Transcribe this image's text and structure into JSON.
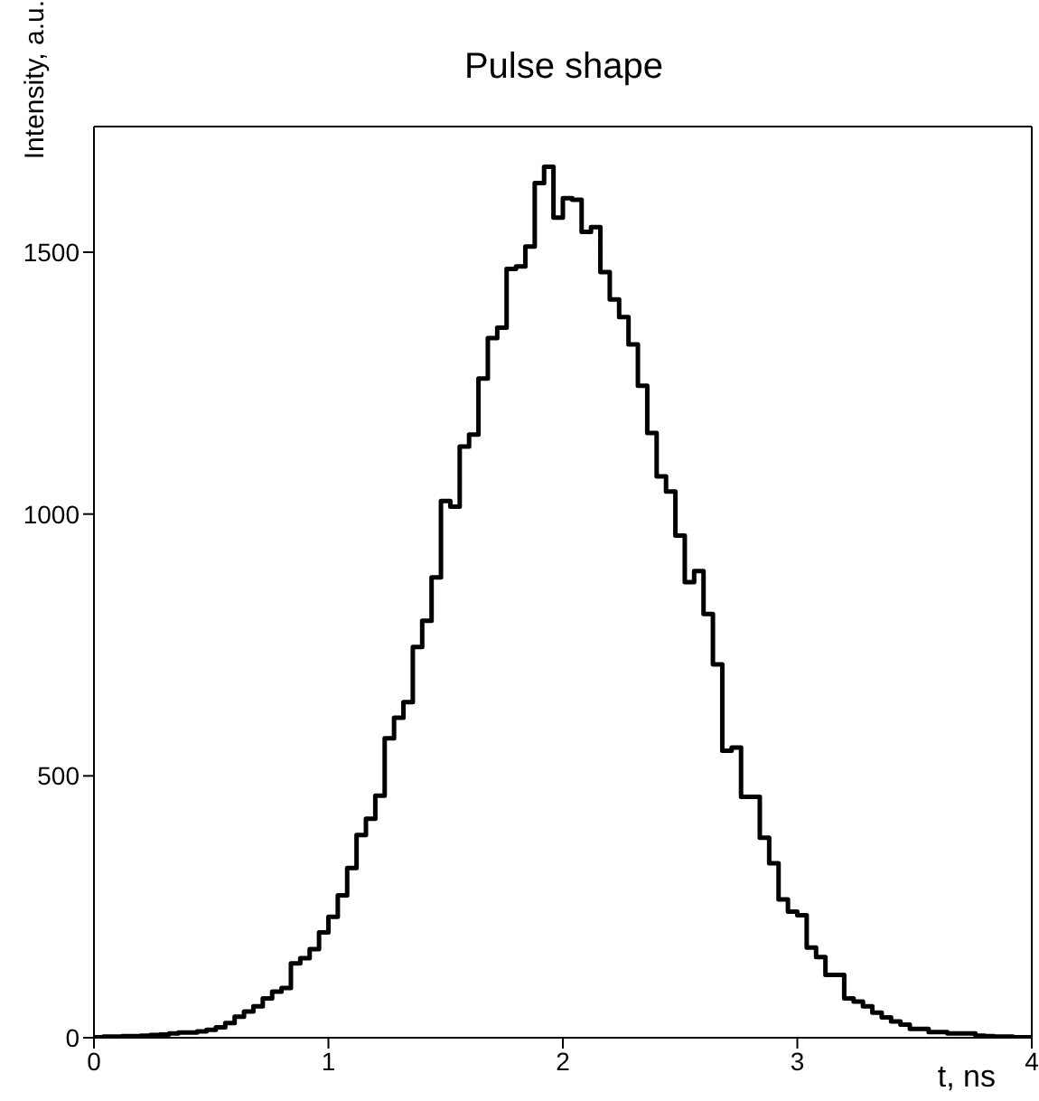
{
  "chart_data": {
    "type": "histogram",
    "title": "Pulse shape",
    "xlabel": "t, ns",
    "ylabel": "Intensity, a.u.",
    "color": "#000000",
    "bins": [
      0,
      0.04,
      0.08,
      0.12,
      0.16,
      0.2,
      0.24,
      0.28,
      0.32,
      0.36,
      0.4,
      0.44,
      0.48,
      0.52,
      0.56,
      0.6,
      0.64,
      0.68,
      0.72,
      0.76,
      0.8,
      0.84,
      0.88,
      0.92,
      0.96,
      1,
      1.04,
      1.08,
      1.12,
      1.16,
      1.2,
      1.24,
      1.28,
      1.32,
      1.36,
      1.4,
      1.44,
      1.48,
      1.52,
      1.56,
      1.6,
      1.64,
      1.68,
      1.72,
      1.76,
      1.8,
      1.84,
      1.88,
      1.92,
      1.96,
      2,
      2.04,
      2.08,
      2.12,
      2.16,
      2.2,
      2.24,
      2.28,
      2.32,
      2.36,
      2.4,
      2.44,
      2.48,
      2.52,
      2.56,
      2.6,
      2.64,
      2.68,
      2.72,
      2.76,
      2.8,
      2.84,
      2.88,
      2.92,
      2.96,
      3,
      3.04,
      3.08,
      3.12,
      3.16,
      3.2,
      3.24,
      3.28,
      3.32,
      3.36,
      3.4,
      3.44,
      3.48,
      3.52,
      3.56,
      3.6,
      3.64,
      3.68,
      3.72,
      3.76,
      3.8,
      3.84,
      3.88,
      3.92,
      3.96,
      4
    ],
    "values": [
      1,
      2,
      2,
      3,
      3,
      4,
      5,
      6,
      8,
      10,
      10,
      12,
      15,
      20,
      28,
      40,
      50,
      60,
      75,
      88,
      95,
      142,
      152,
      169,
      201,
      231,
      272,
      324,
      387,
      418,
      462,
      572,
      611,
      641,
      746,
      796,
      879,
      1025,
      1014,
      1129,
      1152,
      1259,
      1336,
      1356,
      1468,
      1473,
      1511,
      1632,
      1663,
      1566,
      1603,
      1600,
      1539,
      1548,
      1462,
      1410,
      1376,
      1324,
      1245,
      1155,
      1072,
      1043,
      959,
      870,
      891,
      809,
      713,
      548,
      554,
      460,
      460,
      382,
      333,
      264,
      241,
      234,
      172,
      154,
      120,
      120,
      75,
      69,
      60,
      48,
      39,
      31,
      25,
      17,
      17,
      11,
      11,
      8,
      8,
      8,
      4,
      3,
      2,
      2,
      1,
      1
    ],
    "xlim": [
      0,
      4
    ],
    "xticks": [
      0,
      1,
      2,
      3,
      4
    ],
    "ylim": [
      0,
      1740
    ],
    "yticks": [
      0,
      500,
      1000,
      1500
    ],
    "grid": false,
    "legend": false
  }
}
